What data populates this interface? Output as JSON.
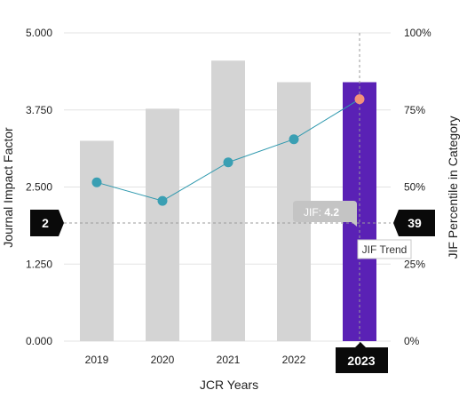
{
  "chart_data": {
    "type": "bar",
    "categories": [
      "2019",
      "2020",
      "2021",
      "2022",
      "2023"
    ],
    "xlabel": "JCR Years",
    "ylabel": "Journal Impact Factor",
    "y2label": "JIF Percentile in Category",
    "ylim": [
      0,
      5
    ],
    "y2lim": [
      0,
      100
    ],
    "yticks": [
      "0.000",
      "1.250",
      "2.500",
      "3.750",
      "5.000"
    ],
    "y2ticks": [
      "0%",
      "25%",
      "50%",
      "75%",
      "100%"
    ],
    "series": [
      {
        "kind": "bar",
        "axis": "left",
        "values": [
          3.25,
          3.77,
          4.55,
          4.2,
          4.2
        ]
      },
      {
        "kind": "line",
        "axis": "right",
        "values": [
          51.5,
          45.5,
          58,
          65.5,
          78.5
        ]
      }
    ],
    "highlight": {
      "category": "2023",
      "year_label": "2023",
      "left_value_label": "2",
      "right_value_label": "39",
      "tooltip_prefix": "JIF: ",
      "tooltip_value": "4.2",
      "trend_label": "JIF Trend"
    },
    "colors": {
      "bar": "#d4d4d4",
      "bar_highlight": "#5a21b5",
      "line": "#2f99ae",
      "point": "#3a9fb3",
      "point_highlight": "#f4927a",
      "badge": "#0a0a0a",
      "tooltip": "#c4c4c4",
      "grid": "#e3e3e3",
      "crosshair": "#9a9a9a"
    },
    "grid": true,
    "legend": "none"
  }
}
